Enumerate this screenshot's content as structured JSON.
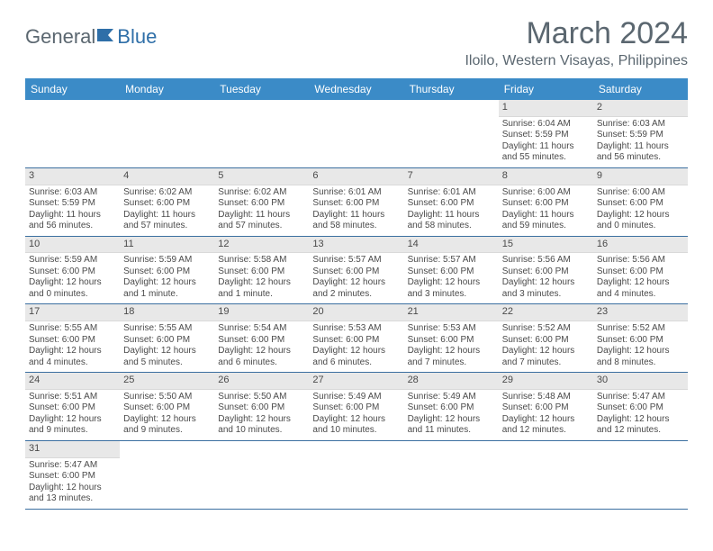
{
  "logo": {
    "text1": "General",
    "text2": "Blue"
  },
  "title": "March 2024",
  "location": "Iloilo, Western Visayas, Philippines",
  "colors": {
    "header_bg": "#3b8bc7",
    "header_text": "#ffffff",
    "daynum_bg": "#e8e8e8",
    "row_border": "#3b6fa0",
    "text_muted": "#5b6770",
    "cell_text": "#4a4a4a"
  },
  "day_headers": [
    "Sunday",
    "Monday",
    "Tuesday",
    "Wednesday",
    "Thursday",
    "Friday",
    "Saturday"
  ],
  "weeks": [
    [
      {
        "empty": true
      },
      {
        "empty": true
      },
      {
        "empty": true
      },
      {
        "empty": true
      },
      {
        "empty": true
      },
      {
        "num": "1",
        "sunrise": "Sunrise: 6:04 AM",
        "sunset": "Sunset: 5:59 PM",
        "daylight": "Daylight: 11 hours and 55 minutes."
      },
      {
        "num": "2",
        "sunrise": "Sunrise: 6:03 AM",
        "sunset": "Sunset: 5:59 PM",
        "daylight": "Daylight: 11 hours and 56 minutes."
      }
    ],
    [
      {
        "num": "3",
        "sunrise": "Sunrise: 6:03 AM",
        "sunset": "Sunset: 5:59 PM",
        "daylight": "Daylight: 11 hours and 56 minutes."
      },
      {
        "num": "4",
        "sunrise": "Sunrise: 6:02 AM",
        "sunset": "Sunset: 6:00 PM",
        "daylight": "Daylight: 11 hours and 57 minutes."
      },
      {
        "num": "5",
        "sunrise": "Sunrise: 6:02 AM",
        "sunset": "Sunset: 6:00 PM",
        "daylight": "Daylight: 11 hours and 57 minutes."
      },
      {
        "num": "6",
        "sunrise": "Sunrise: 6:01 AM",
        "sunset": "Sunset: 6:00 PM",
        "daylight": "Daylight: 11 hours and 58 minutes."
      },
      {
        "num": "7",
        "sunrise": "Sunrise: 6:01 AM",
        "sunset": "Sunset: 6:00 PM",
        "daylight": "Daylight: 11 hours and 58 minutes."
      },
      {
        "num": "8",
        "sunrise": "Sunrise: 6:00 AM",
        "sunset": "Sunset: 6:00 PM",
        "daylight": "Daylight: 11 hours and 59 minutes."
      },
      {
        "num": "9",
        "sunrise": "Sunrise: 6:00 AM",
        "sunset": "Sunset: 6:00 PM",
        "daylight": "Daylight: 12 hours and 0 minutes."
      }
    ],
    [
      {
        "num": "10",
        "sunrise": "Sunrise: 5:59 AM",
        "sunset": "Sunset: 6:00 PM",
        "daylight": "Daylight: 12 hours and 0 minutes."
      },
      {
        "num": "11",
        "sunrise": "Sunrise: 5:59 AM",
        "sunset": "Sunset: 6:00 PM",
        "daylight": "Daylight: 12 hours and 1 minute."
      },
      {
        "num": "12",
        "sunrise": "Sunrise: 5:58 AM",
        "sunset": "Sunset: 6:00 PM",
        "daylight": "Daylight: 12 hours and 1 minute."
      },
      {
        "num": "13",
        "sunrise": "Sunrise: 5:57 AM",
        "sunset": "Sunset: 6:00 PM",
        "daylight": "Daylight: 12 hours and 2 minutes."
      },
      {
        "num": "14",
        "sunrise": "Sunrise: 5:57 AM",
        "sunset": "Sunset: 6:00 PM",
        "daylight": "Daylight: 12 hours and 3 minutes."
      },
      {
        "num": "15",
        "sunrise": "Sunrise: 5:56 AM",
        "sunset": "Sunset: 6:00 PM",
        "daylight": "Daylight: 12 hours and 3 minutes."
      },
      {
        "num": "16",
        "sunrise": "Sunrise: 5:56 AM",
        "sunset": "Sunset: 6:00 PM",
        "daylight": "Daylight: 12 hours and 4 minutes."
      }
    ],
    [
      {
        "num": "17",
        "sunrise": "Sunrise: 5:55 AM",
        "sunset": "Sunset: 6:00 PM",
        "daylight": "Daylight: 12 hours and 4 minutes."
      },
      {
        "num": "18",
        "sunrise": "Sunrise: 5:55 AM",
        "sunset": "Sunset: 6:00 PM",
        "daylight": "Daylight: 12 hours and 5 minutes."
      },
      {
        "num": "19",
        "sunrise": "Sunrise: 5:54 AM",
        "sunset": "Sunset: 6:00 PM",
        "daylight": "Daylight: 12 hours and 6 minutes."
      },
      {
        "num": "20",
        "sunrise": "Sunrise: 5:53 AM",
        "sunset": "Sunset: 6:00 PM",
        "daylight": "Daylight: 12 hours and 6 minutes."
      },
      {
        "num": "21",
        "sunrise": "Sunrise: 5:53 AM",
        "sunset": "Sunset: 6:00 PM",
        "daylight": "Daylight: 12 hours and 7 minutes."
      },
      {
        "num": "22",
        "sunrise": "Sunrise: 5:52 AM",
        "sunset": "Sunset: 6:00 PM",
        "daylight": "Daylight: 12 hours and 7 minutes."
      },
      {
        "num": "23",
        "sunrise": "Sunrise: 5:52 AM",
        "sunset": "Sunset: 6:00 PM",
        "daylight": "Daylight: 12 hours and 8 minutes."
      }
    ],
    [
      {
        "num": "24",
        "sunrise": "Sunrise: 5:51 AM",
        "sunset": "Sunset: 6:00 PM",
        "daylight": "Daylight: 12 hours and 9 minutes."
      },
      {
        "num": "25",
        "sunrise": "Sunrise: 5:50 AM",
        "sunset": "Sunset: 6:00 PM",
        "daylight": "Daylight: 12 hours and 9 minutes."
      },
      {
        "num": "26",
        "sunrise": "Sunrise: 5:50 AM",
        "sunset": "Sunset: 6:00 PM",
        "daylight": "Daylight: 12 hours and 10 minutes."
      },
      {
        "num": "27",
        "sunrise": "Sunrise: 5:49 AM",
        "sunset": "Sunset: 6:00 PM",
        "daylight": "Daylight: 12 hours and 10 minutes."
      },
      {
        "num": "28",
        "sunrise": "Sunrise: 5:49 AM",
        "sunset": "Sunset: 6:00 PM",
        "daylight": "Daylight: 12 hours and 11 minutes."
      },
      {
        "num": "29",
        "sunrise": "Sunrise: 5:48 AM",
        "sunset": "Sunset: 6:00 PM",
        "daylight": "Daylight: 12 hours and 12 minutes."
      },
      {
        "num": "30",
        "sunrise": "Sunrise: 5:47 AM",
        "sunset": "Sunset: 6:00 PM",
        "daylight": "Daylight: 12 hours and 12 minutes."
      }
    ],
    [
      {
        "num": "31",
        "sunrise": "Sunrise: 5:47 AM",
        "sunset": "Sunset: 6:00 PM",
        "daylight": "Daylight: 12 hours and 13 minutes."
      },
      {
        "empty": true
      },
      {
        "empty": true
      },
      {
        "empty": true
      },
      {
        "empty": true
      },
      {
        "empty": true
      },
      {
        "empty": true
      }
    ]
  ]
}
